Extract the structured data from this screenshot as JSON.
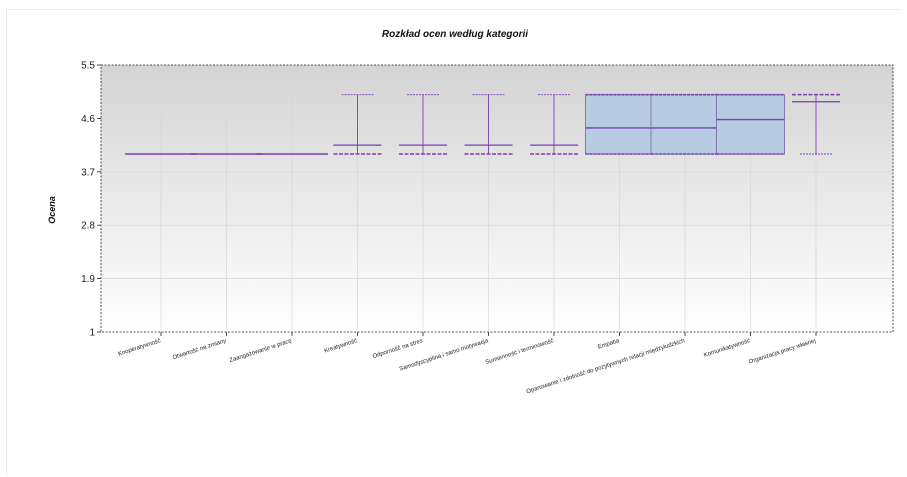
{
  "chart_data": {
    "type": "boxplot",
    "title": "Rozkład ocen według kategorii",
    "xlabel": "",
    "ylabel": "Ocena",
    "ylim": [
      1,
      5.5
    ],
    "yticks": [
      "1",
      "1.9",
      "2.8",
      "3.7",
      "4.6",
      "5.5"
    ],
    "grid": true,
    "legend": "none",
    "colors": {
      "box_fill": "#b7cbe3",
      "box_stroke": "#7b6fa8",
      "median": "#7a3fb0",
      "whisker": "#7a3fb0",
      "grid": "#d6d6d6"
    },
    "categories": [
      "Kooperatywność",
      "Otwartość na zmiany",
      "Zaangażowanie w pracę",
      "Kreatywność",
      "Odporność na stres",
      "Samodyscyplina i samo motywacja",
      "Sumienność i terminowość",
      "Empatia",
      "Opanowanie i zdolność do pozytywnych relacji międzyludzkich",
      "Komunikatywność",
      "Organizacja pracy własnej"
    ],
    "boxes": [
      {
        "min": 4,
        "q1": 4,
        "median": 4,
        "q3": 4,
        "max": 4,
        "mean": 4
      },
      {
        "min": 4,
        "q1": 4,
        "median": 4,
        "q3": 4,
        "max": 4,
        "mean": 4
      },
      {
        "min": 4,
        "q1": 4,
        "median": 4,
        "q3": 4,
        "max": 4,
        "mean": 4
      },
      {
        "min": 4,
        "q1": 4,
        "median": 4,
        "q3": 4,
        "max": 5,
        "mean": 4.15
      },
      {
        "min": 4,
        "q1": 4,
        "median": 4,
        "q3": 4,
        "max": 5,
        "mean": 4.15
      },
      {
        "min": 4,
        "q1": 4,
        "median": 4,
        "q3": 4,
        "max": 5,
        "mean": 4.15
      },
      {
        "min": 4,
        "q1": 4,
        "median": 4,
        "q3": 4,
        "max": 5,
        "mean": 4.15
      },
      {
        "min": 4,
        "q1": 4,
        "median": 4.44,
        "q3": 5,
        "max": 5,
        "mean": 4.44
      },
      {
        "min": 4,
        "q1": 4,
        "median": 4.44,
        "q3": 5,
        "max": 5,
        "mean": 4.44
      },
      {
        "min": 4,
        "q1": 4,
        "median": 4.58,
        "q3": 5,
        "max": 5,
        "mean": 4.58
      },
      {
        "min": 4,
        "q1": 5,
        "median": 5,
        "q3": 5,
        "max": 5,
        "mean": 4.88
      }
    ]
  }
}
